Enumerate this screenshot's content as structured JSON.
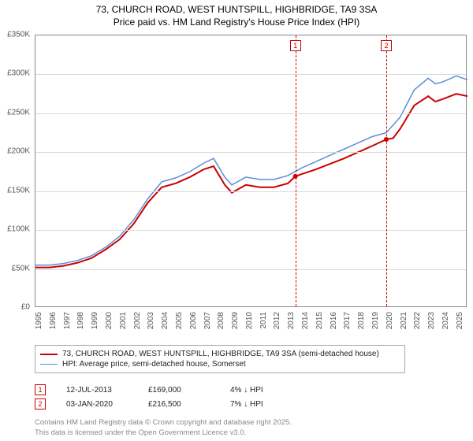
{
  "title": {
    "line1": "73, CHURCH ROAD, WEST HUNTSPILL, HIGHBRIDGE, TA9 3SA",
    "line2": "Price paid vs. HM Land Registry's House Price Index (HPI)"
  },
  "chart": {
    "type": "line",
    "background_color": "#ffffff",
    "grid_color": "#d8d8d8",
    "border_color": "#888888",
    "xlim": [
      1995,
      2025.8
    ],
    "ylim": [
      0,
      350
    ],
    "y_ticks": [
      0,
      50,
      100,
      150,
      200,
      250,
      300,
      350
    ],
    "y_tick_labels": [
      "£0",
      "£50K",
      "£100K",
      "£150K",
      "£200K",
      "£250K",
      "£300K",
      "£350K"
    ],
    "x_ticks": [
      1995,
      1996,
      1997,
      1998,
      1999,
      2000,
      2001,
      2002,
      2003,
      2004,
      2005,
      2006,
      2007,
      2008,
      2009,
      2010,
      2011,
      2012,
      2013,
      2014,
      2015,
      2016,
      2017,
      2018,
      2019,
      2020,
      2021,
      2022,
      2023,
      2024,
      2025
    ],
    "x_tick_labels": [
      "1995",
      "1996",
      "1997",
      "1998",
      "1999",
      "2000",
      "2001",
      "2002",
      "2003",
      "2004",
      "2005",
      "2006",
      "2007",
      "2008",
      "2009",
      "2010",
      "2011",
      "2012",
      "2013",
      "2014",
      "2015",
      "2016",
      "2017",
      "2018",
      "2019",
      "2020",
      "2021",
      "2022",
      "2023",
      "2024",
      "2025"
    ],
    "axis_font_size": 10,
    "axis_color": "#555555",
    "series": [
      {
        "name": "73, CHURCH ROAD, WEST HUNTSPILL, HIGHBRIDGE, TA9 3SA (semi-detached house)",
        "color": "#cc0000",
        "line_width": 2,
        "data": [
          [
            1995,
            52
          ],
          [
            1996,
            52
          ],
          [
            1997,
            54
          ],
          [
            1998,
            58
          ],
          [
            1999,
            64
          ],
          [
            2000,
            75
          ],
          [
            2001,
            88
          ],
          [
            2002,
            108
          ],
          [
            2003,
            135
          ],
          [
            2004,
            155
          ],
          [
            2005,
            160
          ],
          [
            2006,
            168
          ],
          [
            2007,
            178
          ],
          [
            2007.7,
            182
          ],
          [
            2008.5,
            158
          ],
          [
            2009,
            148
          ],
          [
            2010,
            158
          ],
          [
            2011,
            155
          ],
          [
            2012,
            155
          ],
          [
            2013,
            160
          ],
          [
            2013.53,
            169
          ],
          [
            2014,
            172
          ],
          [
            2015,
            178
          ],
          [
            2016,
            185
          ],
          [
            2017,
            192
          ],
          [
            2018,
            200
          ],
          [
            2019,
            208
          ],
          [
            2020.01,
            216.5
          ],
          [
            2020.5,
            218
          ],
          [
            2021,
            230
          ],
          [
            2022,
            260
          ],
          [
            2023,
            272
          ],
          [
            2023.5,
            265
          ],
          [
            2024,
            268
          ],
          [
            2025,
            275
          ],
          [
            2025.8,
            272
          ]
        ]
      },
      {
        "name": "HPI: Average price, semi-detached house, Somerset",
        "color": "#5b8fd6",
        "line_width": 1.5,
        "data": [
          [
            1995,
            55
          ],
          [
            1996,
            55
          ],
          [
            1997,
            57
          ],
          [
            1998,
            61
          ],
          [
            1999,
            67
          ],
          [
            2000,
            78
          ],
          [
            2001,
            92
          ],
          [
            2002,
            113
          ],
          [
            2003,
            140
          ],
          [
            2004,
            162
          ],
          [
            2005,
            167
          ],
          [
            2006,
            175
          ],
          [
            2007,
            186
          ],
          [
            2007.7,
            192
          ],
          [
            2008.5,
            168
          ],
          [
            2009,
            158
          ],
          [
            2010,
            168
          ],
          [
            2011,
            165
          ],
          [
            2012,
            165
          ],
          [
            2013,
            170
          ],
          [
            2014,
            180
          ],
          [
            2015,
            188
          ],
          [
            2016,
            196
          ],
          [
            2017,
            204
          ],
          [
            2018,
            212
          ],
          [
            2019,
            220
          ],
          [
            2020,
            225
          ],
          [
            2021,
            245
          ],
          [
            2022,
            280
          ],
          [
            2023,
            295
          ],
          [
            2023.5,
            288
          ],
          [
            2024,
            290
          ],
          [
            2025,
            298
          ],
          [
            2025.8,
            293
          ]
        ]
      }
    ],
    "markers": [
      {
        "id": "1",
        "x": 2013.53,
        "y": 169,
        "box_color": "#cc0000",
        "date": "12-JUL-2013",
        "price": "£169,000",
        "pct": "4%",
        "direction": "↓",
        "rel": "HPI"
      },
      {
        "id": "2",
        "x": 2020.01,
        "y": 216.5,
        "box_color": "#cc0000",
        "date": "03-JAN-2020",
        "price": "£216,500",
        "pct": "7%",
        "direction": "↓",
        "rel": "HPI"
      }
    ],
    "sale_dot_color": "#cc0000",
    "sale_dot_radius": 3
  },
  "legend": {
    "border_color": "#aaaaaa",
    "font_size": 10,
    "items": [
      {
        "color": "#cc0000",
        "width": 2,
        "label": "73, CHURCH ROAD, WEST HUNTSPILL, HIGHBRIDGE, TA9 3SA (semi-detached house)"
      },
      {
        "color": "#5b8fd6",
        "width": 1.5,
        "label": "HPI: Average price, semi-detached house, Somerset"
      }
    ]
  },
  "attribution": {
    "line1": "Contains HM Land Registry data © Crown copyright and database right 2025.",
    "line2": "This data is licensed under the Open Government Licence v3.0.",
    "color": "#888888"
  }
}
